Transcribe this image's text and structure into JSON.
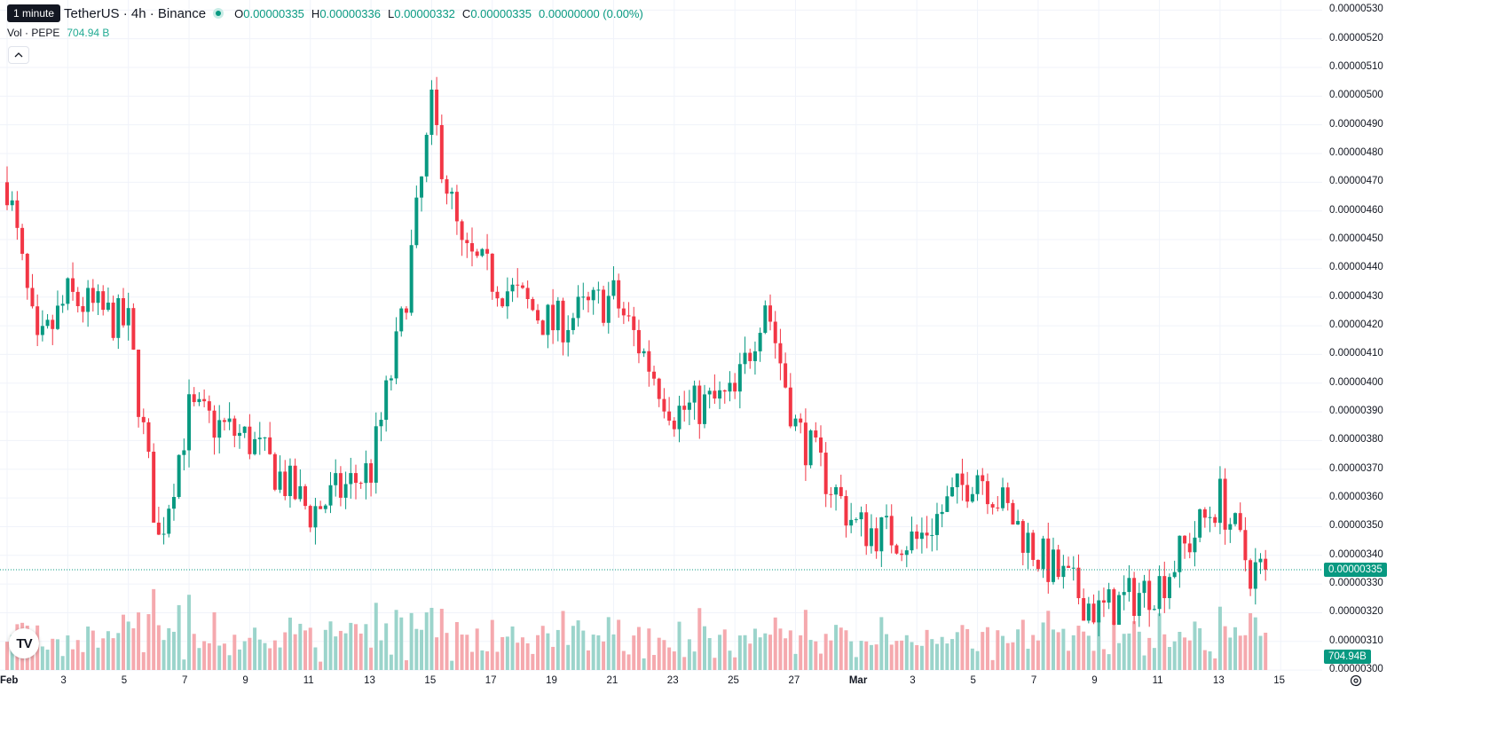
{
  "legend": {
    "tooltip": "1 minute",
    "symbol": "TetherUS · 4h · Binance",
    "open_key": "O",
    "open": "0.00000335",
    "high_key": "H",
    "high": "0.00000336",
    "low_key": "L",
    "low": "0.00000332",
    "close_key": "C",
    "close": "0.00000335",
    "change": "0.00000000 (0.00%)"
  },
  "volume": {
    "label": "Vol · PEPE",
    "value": "704.94 B"
  },
  "price_axis": {
    "ticks": [
      "0.00000300",
      "0.00000310",
      "0.00000320",
      "0.00000330",
      "0.00000340",
      "0.00000350",
      "0.00000360",
      "0.00000370",
      "0.00000380",
      "0.00000390",
      "0.00000400",
      "0.00000410",
      "0.00000420",
      "0.00000430",
      "0.00000440",
      "0.00000450",
      "0.00000460",
      "0.00000470",
      "0.00000480",
      "0.00000490",
      "0.00000500",
      "0.00000510",
      "0.00000520",
      "0.00000530"
    ],
    "current_price": "0.00000335",
    "volume_badge": "704.94B"
  },
  "time_axis": {
    "labels": [
      "Feb",
      "3",
      "5",
      "7",
      "9",
      "11",
      "13",
      "15",
      "17",
      "19",
      "21",
      "23",
      "25",
      "27",
      "Mar",
      "3",
      "5",
      "7",
      "9",
      "11",
      "13",
      "15"
    ]
  },
  "colors": {
    "up": "#089981",
    "down": "#f23645",
    "up_vol": "#9bd4cb",
    "down_vol": "#f5a9ae",
    "grid": "#f0f3fa"
  },
  "icons": {
    "collapse": "chevron-up-icon",
    "logo": "tradingview-logo",
    "settings": "gear-icon"
  },
  "logo_text": "TV",
  "chart_data": {
    "type": "candlestick",
    "x_start": "Feb 1",
    "x_end": "Mar 14",
    "ylim": [
      2.985e-06,
      5.335e-06
    ],
    "key_points": [
      {
        "date": "Feb 1",
        "price": 4.7e-06
      },
      {
        "date": "Feb 2",
        "price": 4.1e-06
      },
      {
        "date": "Feb 3",
        "price": 4.3e-06
      },
      {
        "date": "Feb 5",
        "price": 4.2e-06
      },
      {
        "date": "Feb 6",
        "price": 3.45e-06
      },
      {
        "date": "Feb 7",
        "price": 3.9e-06
      },
      {
        "date": "Feb 9",
        "price": 3.8e-06
      },
      {
        "date": "Feb 11",
        "price": 3.55e-06
      },
      {
        "date": "Feb 13",
        "price": 3.7e-06
      },
      {
        "date": "Feb 14",
        "price": 4.2e-06
      },
      {
        "date": "Feb 15",
        "price": 4.95e-06
      },
      {
        "date": "Feb 16",
        "price": 4.45e-06
      },
      {
        "date": "Feb 19",
        "price": 4.2e-06
      },
      {
        "date": "Feb 21",
        "price": 4.3e-06
      },
      {
        "date": "Feb 23",
        "price": 3.9e-06
      },
      {
        "date": "Feb 25",
        "price": 3.95e-06
      },
      {
        "date": "Feb 26",
        "price": 4.3e-06
      },
      {
        "date": "Feb 27",
        "price": 3.85e-06
      },
      {
        "date": "Mar 1",
        "price": 3.5e-06
      },
      {
        "date": "Mar 3",
        "price": 3.45e-06
      },
      {
        "date": "Mar 5",
        "price": 3.7e-06
      },
      {
        "date": "Mar 7",
        "price": 3.4e-06
      },
      {
        "date": "Mar 9",
        "price": 3.2e-06
      },
      {
        "date": "Mar 11",
        "price": 3.3e-06
      },
      {
        "date": "Mar 13",
        "price": 3.6e-06
      },
      {
        "date": "Mar 14",
        "price": 3.35e-06
      }
    ],
    "last": {
      "open": 3.35e-06,
      "high": 3.36e-06,
      "low": 3.32e-06,
      "close": 3.35e-06
    }
  }
}
